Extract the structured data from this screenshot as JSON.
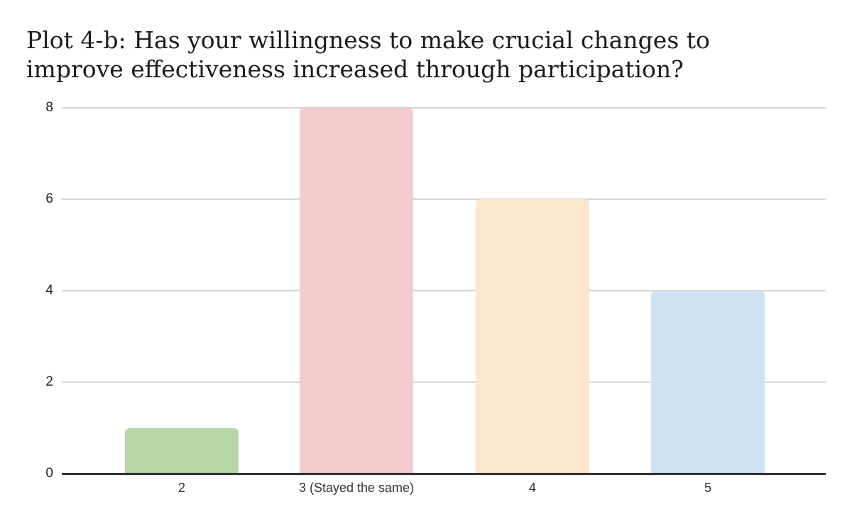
{
  "chart_data": {
    "type": "bar",
    "title": "Plot 4-b: Has your willingness to make crucial changes to improve effectiveness increased through participation?",
    "title_lines": [
      "Plot 4-b: Has your willingness to make crucial changes to",
      "improve effectiveness increased through participation?"
    ],
    "categories": [
      "2",
      "3 (Stayed the same)",
      "4",
      "5"
    ],
    "values": [
      1,
      8,
      6,
      4
    ],
    "bar_colors": [
      "#b6d7a8",
      "#f4cccc",
      "#fce5cd",
      "#cfe2f3"
    ],
    "xlabel": "",
    "ylabel": "",
    "ylim": [
      0,
      8
    ],
    "yticks": [
      0,
      2,
      4,
      6,
      8
    ],
    "grid": true,
    "legend_position": "none"
  },
  "colors": {
    "background": "#ffffff",
    "gridline": "#d5d5d5",
    "axis_line": "#333333",
    "title_text": "#1c1c1c",
    "tick_text": "#222222"
  }
}
